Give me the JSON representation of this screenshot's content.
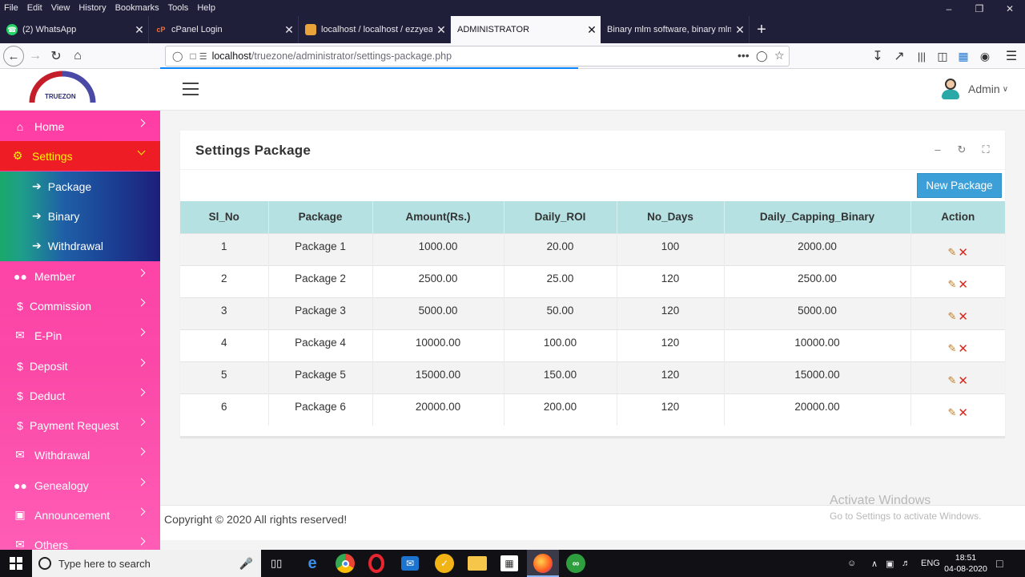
{
  "browser": {
    "menu": [
      "File",
      "Edit",
      "View",
      "History",
      "Bookmarks",
      "Tools",
      "Help"
    ],
    "tabs": [
      {
        "title": "(2) WhatsApp",
        "favicon": "whatsapp-icon",
        "active": false
      },
      {
        "title": "cPanel Login",
        "favicon": "cpanel-icon",
        "active": false
      },
      {
        "title": "localhost / localhost / ezzyeam",
        "favicon": "phpmyadmin-icon",
        "active": false
      },
      {
        "title": "ADMINISTRATOR",
        "favicon": "",
        "active": true
      },
      {
        "title": "Binary mlm software, binary mlm so",
        "favicon": "",
        "active": false
      }
    ],
    "url_host": "localhost",
    "url_path": "/truezone/administrator/settings-package.php"
  },
  "app": {
    "logo_text": "TRUEZON",
    "user_label": "Admin"
  },
  "sidebar": {
    "items": [
      {
        "label": "Home",
        "icon": "home-icon"
      },
      {
        "label": "Settings",
        "icon": "gear-icon"
      },
      {
        "label": "Member",
        "icon": "users-icon"
      },
      {
        "label": "Commission",
        "icon": "dollar-icon"
      },
      {
        "label": "E-Pin",
        "icon": "envelope-icon"
      },
      {
        "label": "Deposit",
        "icon": "dollar-icon"
      },
      {
        "label": "Deduct",
        "icon": "dollar-icon"
      },
      {
        "label": "Payment Request",
        "icon": "dollar-icon"
      },
      {
        "label": "Withdrawal",
        "icon": "envelope-icon"
      },
      {
        "label": "Genealogy",
        "icon": "users-icon"
      },
      {
        "label": "Announcement",
        "icon": "money-icon"
      },
      {
        "label": "Others",
        "icon": "envelope-icon"
      }
    ],
    "settings_sub": [
      {
        "label": "Package"
      },
      {
        "label": "Binary"
      },
      {
        "label": "Withdrawal"
      }
    ]
  },
  "page": {
    "title": "Settings Package",
    "new_button": "New Package"
  },
  "table": {
    "headers": [
      "Sl_No",
      "Package",
      "Amount(Rs.)",
      "Daily_ROI",
      "No_Days",
      "Daily_Capping_Binary",
      "Action"
    ],
    "rows": [
      [
        "1",
        "Package 1",
        "1000.00",
        "20.00",
        "100",
        "2000.00"
      ],
      [
        "2",
        "Package 2",
        "2500.00",
        "25.00",
        "120",
        "2500.00"
      ],
      [
        "3",
        "Package 3",
        "5000.00",
        "50.00",
        "120",
        "5000.00"
      ],
      [
        "4",
        "Package 4",
        "10000.00",
        "100.00",
        "120",
        "10000.00"
      ],
      [
        "5",
        "Package 5",
        "15000.00",
        "150.00",
        "120",
        "15000.00"
      ],
      [
        "6",
        "Package 6",
        "20000.00",
        "200.00",
        "120",
        "20000.00"
      ]
    ]
  },
  "footer": {
    "copyright": "Copyright © 2020 All rights reserved!"
  },
  "watermark": {
    "line1": "Activate Windows",
    "line2": "Go to Settings to activate Windows."
  },
  "taskbar": {
    "search_placeholder": "Type here to search",
    "lang": "ENG",
    "time": "18:51",
    "date": "04-08-2020"
  }
}
